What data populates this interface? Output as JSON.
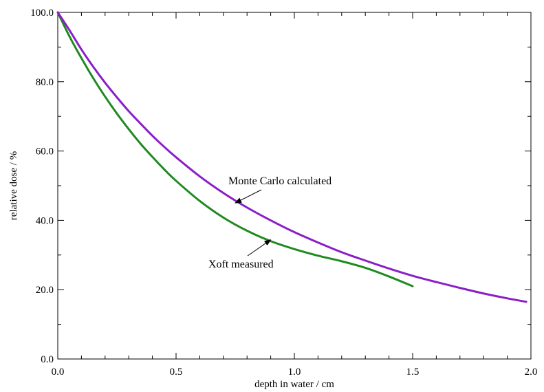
{
  "chart_data": {
    "type": "line",
    "title": "",
    "xlabel": "depth in water / cm",
    "ylabel": "relative dose / %",
    "xlim": [
      0.0,
      2.0
    ],
    "ylim": [
      0.0,
      100.0
    ],
    "x_ticks": [
      "0.0",
      "0.5",
      "1.0",
      "1.5",
      "2.0"
    ],
    "y_ticks": [
      "0.0",
      "20.0",
      "40.0",
      "60.0",
      "80.0",
      "100.0"
    ],
    "grid": false,
    "legend": "none",
    "series": [
      {
        "name": "Monte Carlo calculated",
        "color": "#8a1fc7",
        "x": [
          0.0,
          0.05,
          0.1,
          0.15,
          0.2,
          0.25,
          0.3,
          0.35,
          0.4,
          0.45,
          0.5,
          0.6,
          0.7,
          0.8,
          0.9,
          1.0,
          1.1,
          1.2,
          1.3,
          1.4,
          1.5,
          1.6,
          1.7,
          1.8,
          1.9,
          1.98
        ],
        "y": [
          100.0,
          94.8,
          89.3,
          84.3,
          79.7,
          75.5,
          71.5,
          67.9,
          64.4,
          61.2,
          58.2,
          52.7,
          47.9,
          43.7,
          40.0,
          36.6,
          33.6,
          30.8,
          28.4,
          26.1,
          24.0,
          22.2,
          20.5,
          18.9,
          17.5,
          16.5
        ]
      },
      {
        "name": "Xoft measured",
        "color": "#1f8a1f",
        "x": [
          0.0,
          0.05,
          0.1,
          0.15,
          0.2,
          0.25,
          0.3,
          0.35,
          0.4,
          0.45,
          0.5,
          0.6,
          0.7,
          0.8,
          0.9,
          1.0,
          1.1,
          1.2,
          1.3,
          1.4,
          1.5
        ],
        "y": [
          100.0,
          93.0,
          86.8,
          81.0,
          75.7,
          70.8,
          66.3,
          62.1,
          58.3,
          54.7,
          51.4,
          45.6,
          40.8,
          37.0,
          34.0,
          31.7,
          29.8,
          28.2,
          26.3,
          23.8,
          21.0
        ]
      }
    ],
    "annotations": [
      {
        "text": "Monte Carlo calculated",
        "target_series": 0,
        "target_x": 0.75
      },
      {
        "text": "Xoft measured",
        "target_series": 1,
        "target_x": 0.9
      }
    ]
  }
}
